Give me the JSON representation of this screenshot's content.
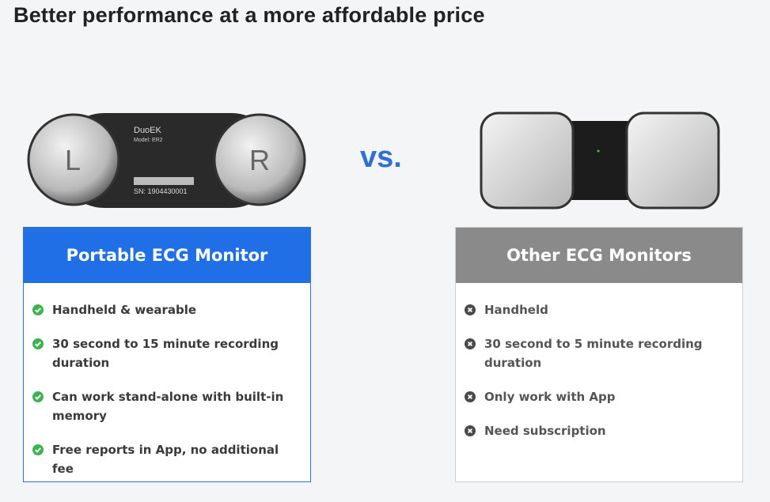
{
  "header": {
    "title": "Better performance at a more affordable price"
  },
  "devices": {
    "left": {
      "brand": "DuoEK",
      "model": "Model: ER2",
      "left_label": "L",
      "right_label": "R",
      "serial": "SN: 1904430001"
    },
    "versus": "vs."
  },
  "cards": [
    {
      "title": "Portable ECG Monitor",
      "items": [
        "Handheld & wearable",
        "30 second to 15 minute recording duration",
        "Can work stand-alone with built-in memory",
        "Free reports in App, no additional fee"
      ]
    },
    {
      "title": "Other ECG Monitors",
      "items": [
        "Handheld",
        "30 second to 5 minute recording duration",
        "Only work with App",
        "Need subscription"
      ]
    }
  ]
}
